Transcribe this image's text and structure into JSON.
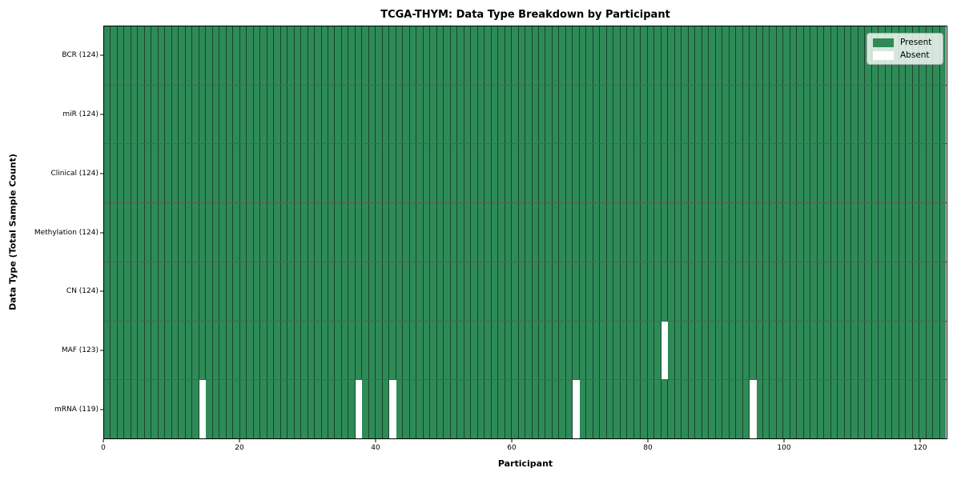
{
  "chart_data": {
    "type": "heatmap",
    "title": "TCGA-THYM: Data Type Breakdown by Participant",
    "xlabel": "Participant",
    "ylabel": "Data Type (Total Sample Count)",
    "n_participants": 124,
    "x_range": [
      0,
      124
    ],
    "x_ticks": [
      0,
      20,
      40,
      60,
      80,
      100,
      120
    ],
    "grid": false,
    "legend_position": "upper right",
    "legend": [
      {
        "label": "Present",
        "color": "#2e8b57"
      },
      {
        "label": "Absent",
        "color": "#ffffff"
      }
    ],
    "colors": {
      "present": "#2e8b57",
      "absent": "#ffffff",
      "cell_edge": "#1c4a30",
      "axis": "#000000"
    },
    "rows": [
      {
        "label": "BCR (124)",
        "data_type": "BCR",
        "present_count": 124,
        "absent_participants": []
      },
      {
        "label": "miR (124)",
        "data_type": "miR",
        "present_count": 124,
        "absent_participants": []
      },
      {
        "label": "Clinical (124)",
        "data_type": "Clinical",
        "present_count": 124,
        "absent_participants": []
      },
      {
        "label": "Methylation (124)",
        "data_type": "Methylation",
        "present_count": 124,
        "absent_participants": []
      },
      {
        "label": "CN (124)",
        "data_type": "CN",
        "present_count": 124,
        "absent_participants": []
      },
      {
        "label": "MAF (123)",
        "data_type": "MAF",
        "present_count": 123,
        "absent_participants": [
          82
        ]
      },
      {
        "label": "mRNA (119)",
        "data_type": "mRNA",
        "present_count": 119,
        "absent_participants": [
          14,
          37,
          42,
          69,
          95
        ]
      }
    ]
  }
}
